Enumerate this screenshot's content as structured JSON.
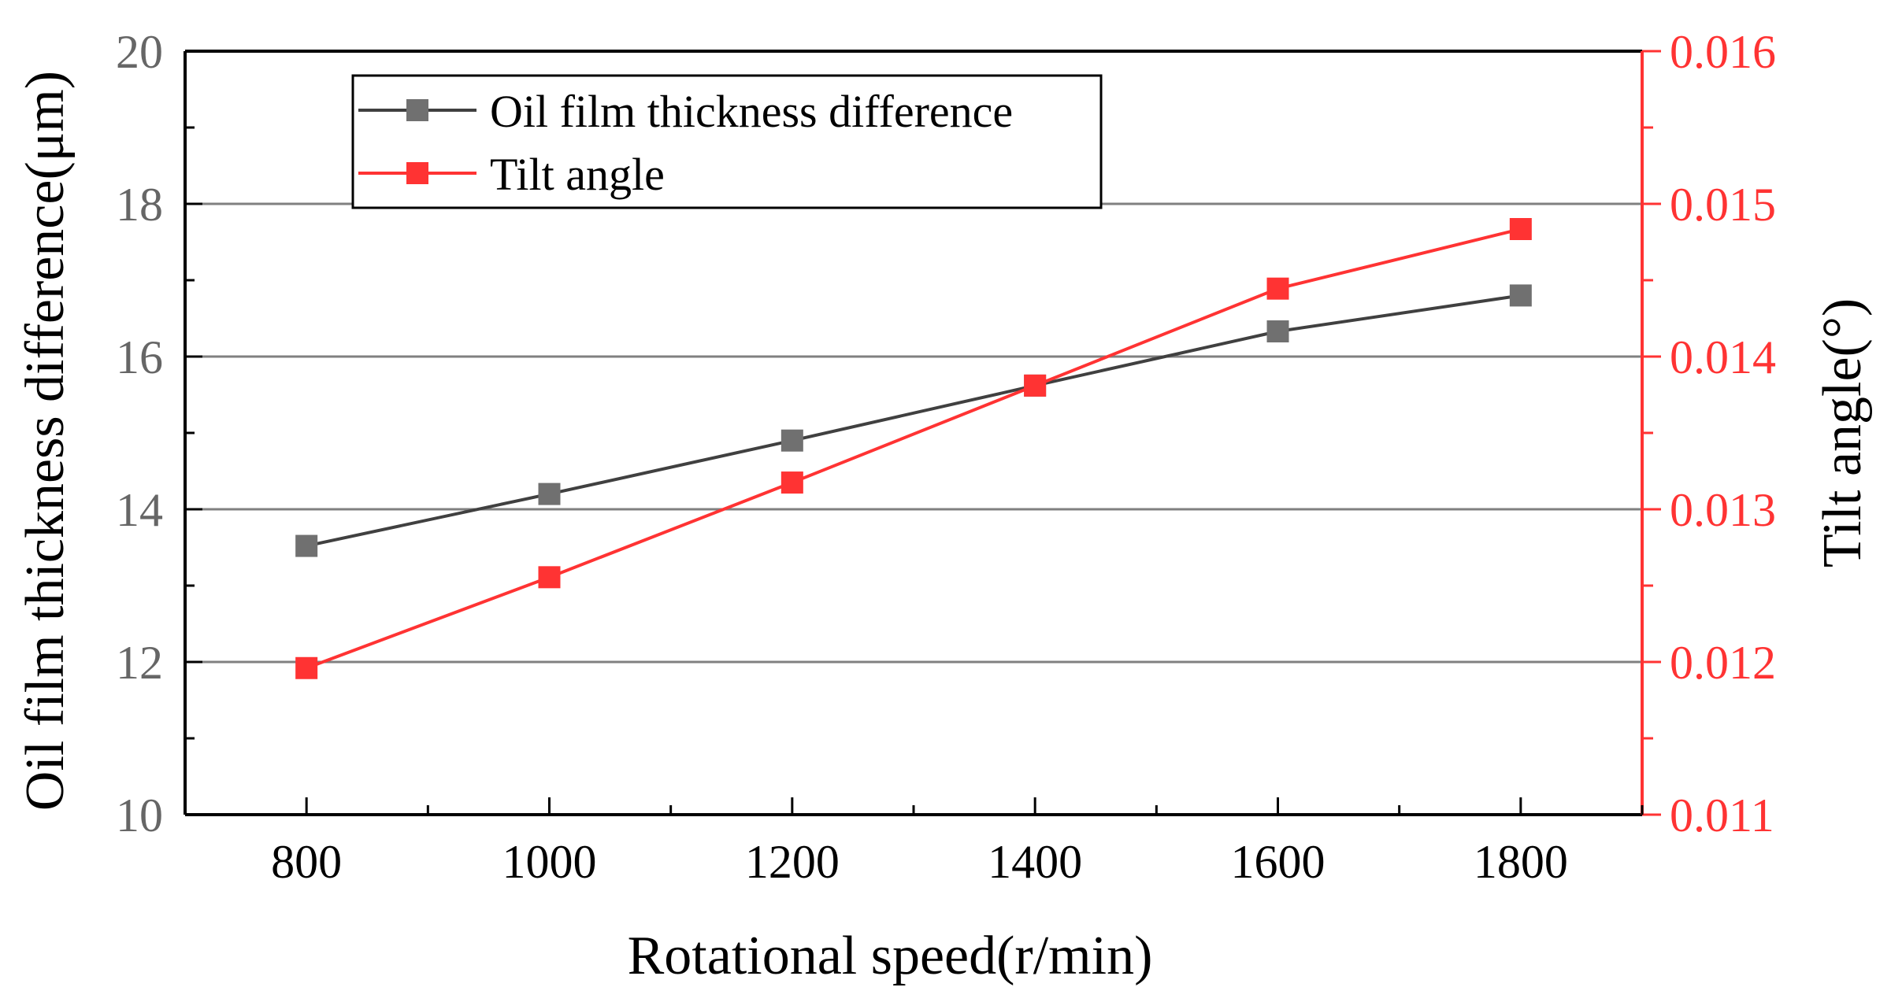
{
  "chart_data": {
    "type": "line",
    "x": [
      800,
      1000,
      1200,
      1400,
      1600,
      1800
    ],
    "x_ticks": [
      "800",
      "1000",
      "1200",
      "1400",
      "1600",
      "1800"
    ],
    "xlabel": "Rotational speed(r/min)",
    "xlim": [
      700,
      1900
    ],
    "y_left": {
      "label": "Oil film thickness difference(μm)",
      "ylim": [
        10,
        20
      ],
      "ticks": [
        "10",
        "12",
        "14",
        "16",
        "18",
        "20"
      ],
      "color": "#666666"
    },
    "y_right": {
      "label": "Tilt angle(°)",
      "ylim": [
        0.011,
        0.016
      ],
      "ticks": [
        "0.011",
        "0.012",
        "0.013",
        "0.014",
        "0.015",
        "0.016"
      ],
      "color": "#ff3333"
    },
    "series": [
      {
        "name": "Oil film thickness difference",
        "axis": "left",
        "color": "#404040",
        "marker_color": "#707070",
        "values": [
          13.52,
          14.2,
          14.9,
          15.62,
          16.33,
          16.8
        ]
      },
      {
        "name": "Tilt angle",
        "axis": "right",
        "color": "#ff3333",
        "marker_color": "#ff3333",
        "values": [
          0.01196,
          0.012555,
          0.013175,
          0.01381,
          0.014445,
          0.014835
        ]
      }
    ],
    "grid": true,
    "legend_position": "top-left"
  }
}
